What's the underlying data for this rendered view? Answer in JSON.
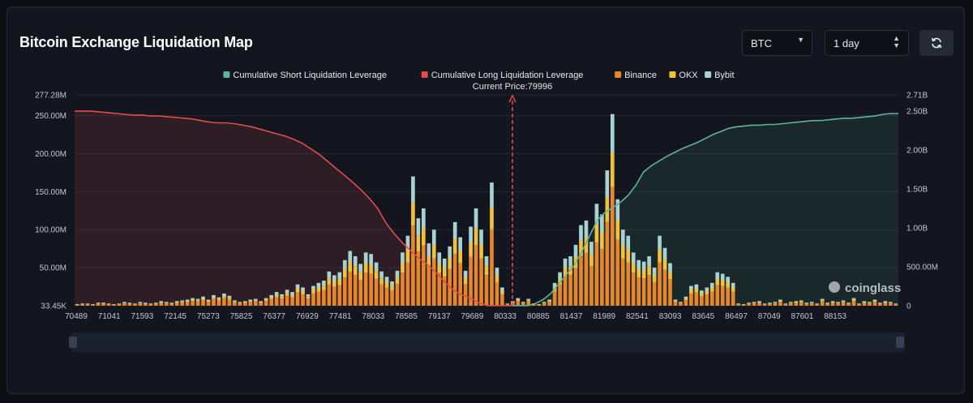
{
  "header": {
    "title": "Bitcoin Exchange Liquidation Map",
    "symbol_select": "BTC",
    "range_select": "1 day",
    "refresh_icon": "refresh-icon"
  },
  "watermark": "coinglass",
  "colors": {
    "short": "#5fb39c",
    "long": "#e04c4c",
    "binance": "#e8862a",
    "okx": "#f2c13a",
    "bybit": "#a8d2d2",
    "current_price_line": "#e04c4c"
  },
  "chart_data": {
    "type": "bar",
    "legend": [
      {
        "name": "Cumulative Short Liquidation Leverage",
        "color": "#5fb39c"
      },
      {
        "name": "Cumulative Long Liquidation Leverage",
        "color": "#e04c4c"
      },
      {
        "name": "Binance",
        "color": "#e8862a"
      },
      {
        "name": "OKX",
        "color": "#f2c13a"
      },
      {
        "name": "Bybit",
        "color": "#a8d2d2"
      }
    ],
    "current_price_label": "Current Price:79996",
    "current_price": 79996,
    "x_tick_labels": [
      "70489",
      "71041",
      "71593",
      "72145",
      "75273",
      "75825",
      "76377",
      "76929",
      "77481",
      "78033",
      "78585",
      "79137",
      "79689",
      "80333",
      "80885",
      "81437",
      "81989",
      "82541",
      "83093",
      "83645",
      "86497",
      "87049",
      "87601",
      "88153"
    ],
    "y_left": {
      "ticks": [
        "33.45K",
        "50.00M",
        "100.00M",
        "150.00M",
        "200.00M",
        "250.00M",
        "277.28M"
      ],
      "ylim": [
        0,
        277.28
      ],
      "unit": "M"
    },
    "y_right": {
      "ticks": [
        "0",
        "500.00M",
        "1.00B",
        "1.50B",
        "2.00B",
        "2.50B",
        "2.71B"
      ],
      "ylim": [
        0,
        2.71
      ],
      "unit": "B"
    },
    "bars_total_M": [
      2,
      3,
      3,
      2,
      4,
      4,
      3,
      2,
      3,
      5,
      4,
      3,
      5,
      4,
      3,
      4,
      6,
      5,
      4,
      6,
      7,
      8,
      10,
      9,
      12,
      8,
      14,
      11,
      16,
      13,
      7,
      5,
      6,
      8,
      9,
      6,
      10,
      14,
      18,
      15,
      21,
      18,
      28,
      24,
      15,
      26,
      30,
      33,
      45,
      40,
      44,
      60,
      72,
      65,
      55,
      70,
      68,
      57,
      45,
      38,
      32,
      46,
      70,
      92,
      170,
      115,
      128,
      82,
      100,
      70,
      62,
      78,
      110,
      90,
      46,
      104,
      128,
      100,
      65,
      162,
      50,
      24,
      3,
      6,
      10,
      5,
      9,
      3,
      2,
      5,
      8,
      30,
      44,
      62,
      65,
      80,
      106,
      112,
      84,
      134,
      120,
      178,
      252,
      140,
      100,
      92,
      70,
      60,
      58,
      65,
      50,
      92,
      76,
      56,
      8,
      5,
      12,
      26,
      28,
      20,
      24,
      30,
      44,
      42,
      38,
      30,
      3,
      2,
      4,
      5,
      6,
      3,
      4,
      5,
      8,
      3,
      5,
      6,
      7,
      4,
      5,
      3,
      9,
      4,
      6,
      5,
      7,
      4,
      10,
      3,
      6,
      5,
      8,
      4,
      6,
      5,
      3
    ],
    "cumulative_long_B": [
      2.5,
      2.5,
      2.5,
      2.49,
      2.48,
      2.47,
      2.46,
      2.45,
      2.45,
      2.44,
      2.44,
      2.43,
      2.42,
      2.41,
      2.4,
      2.38,
      2.36,
      2.35,
      2.35,
      2.34,
      2.32,
      2.3,
      2.27,
      2.24,
      2.21,
      2.18,
      2.14,
      2.09,
      2.02,
      1.95,
      1.86,
      1.77,
      1.68,
      1.59,
      1.49,
      1.38,
      1.25,
      1.06,
      0.92,
      0.8,
      0.7,
      0.6,
      0.52,
      0.42,
      0.3,
      0.2,
      0.14,
      0.1,
      0.04,
      0.0,
      0.0,
      0.0,
      0.0
    ],
    "cumulative_short_B": [
      0.0,
      0.0,
      0.0,
      0.03,
      0.08,
      0.16,
      0.28,
      0.4,
      0.52,
      0.7,
      0.9,
      1.1,
      1.2,
      1.26,
      1.33,
      1.42,
      1.55,
      1.72,
      1.8,
      1.86,
      1.92,
      1.97,
      2.02,
      2.06,
      2.1,
      2.15,
      2.2,
      2.24,
      2.28,
      2.3,
      2.31,
      2.32,
      2.32,
      2.33,
      2.33,
      2.34,
      2.35,
      2.36,
      2.37,
      2.38,
      2.38,
      2.39,
      2.4,
      2.41,
      2.41,
      2.42,
      2.43,
      2.44,
      2.46,
      2.47,
      2.47
    ]
  }
}
